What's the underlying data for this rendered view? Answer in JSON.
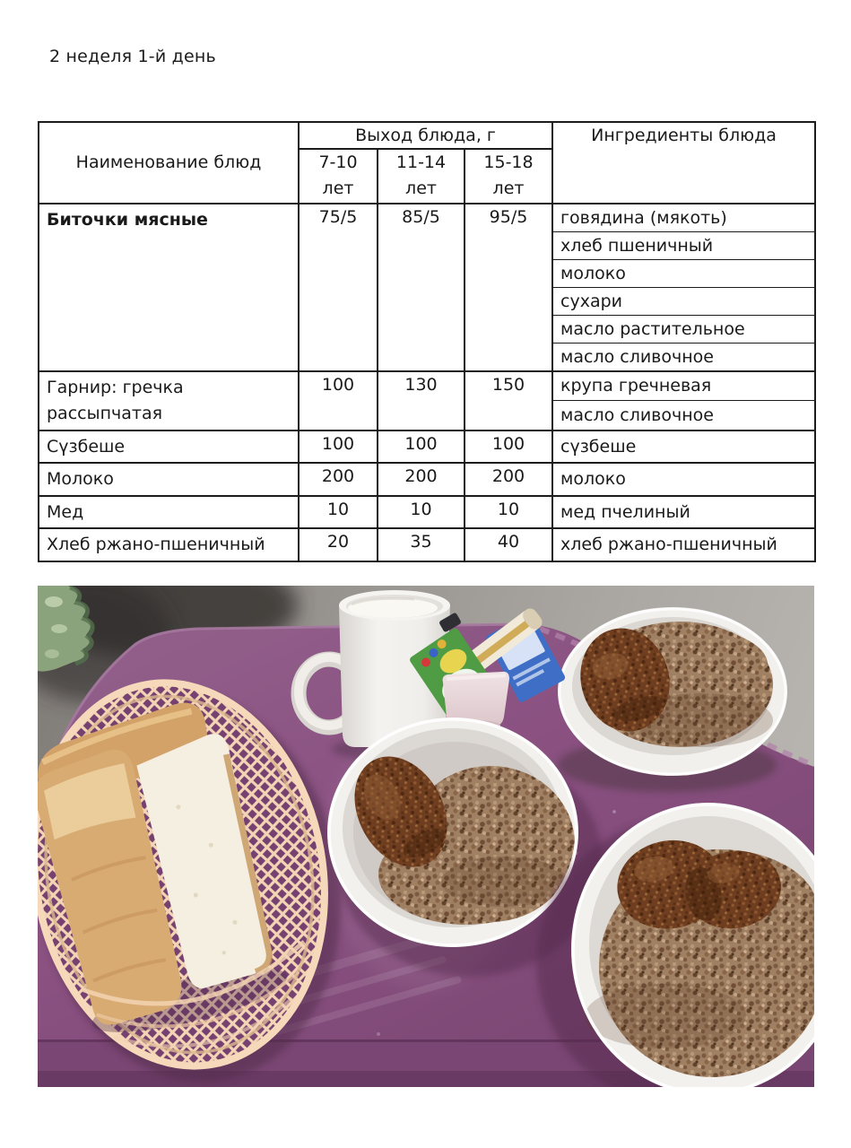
{
  "page": {
    "title": "2 неделя 1-й день"
  },
  "menu_table": {
    "col_name_header": "Наименование блюд",
    "output_header": "Выход блюда, г",
    "age_groups": [
      "7-10 лет",
      "11-14 лет",
      "15-18 лет"
    ],
    "ingredients_header": "Ингредиенты блюда",
    "rows": [
      {
        "name": "Биточки мясные",
        "bold": true,
        "values": [
          "75/5",
          "85/5",
          "95/5"
        ],
        "ingredients": [
          "говядина (мякоть)",
          "хлеб пшеничный",
          "молоко",
          "сухари",
          "масло растительное",
          "масло сливочное"
        ]
      },
      {
        "name": "Гарнир: гречка рассыпчатая",
        "bold": false,
        "values": [
          "100",
          "130",
          "150"
        ],
        "ingredients": [
          "крупа гречневая",
          "масло сливочное"
        ]
      },
      {
        "name": "Сүзбеше",
        "bold": false,
        "values": [
          "100",
          "100",
          "100"
        ],
        "ingredients": [
          "сүзбеше"
        ]
      },
      {
        "name": "Молоко",
        "bold": false,
        "values": [
          "200",
          "200",
          "200"
        ],
        "ingredients": [
          "молоко"
        ]
      },
      {
        "name": "Мед",
        "bold": false,
        "values": [
          "10",
          "10",
          "10"
        ],
        "ingredients": [
          "мед пчелиный"
        ]
      },
      {
        "name": "Хлеб ржано-пшеничный",
        "bold": false,
        "values": [
          "20",
          "35",
          "40"
        ],
        "ingredients": [
          "хлеб ржано-пшеничный"
        ]
      }
    ]
  },
  "colors": {
    "tray_purple": "#8a5181",
    "table_border": "#1c1c1c",
    "buckwheat": "#a08063",
    "cutlet": "#6f3e20"
  }
}
